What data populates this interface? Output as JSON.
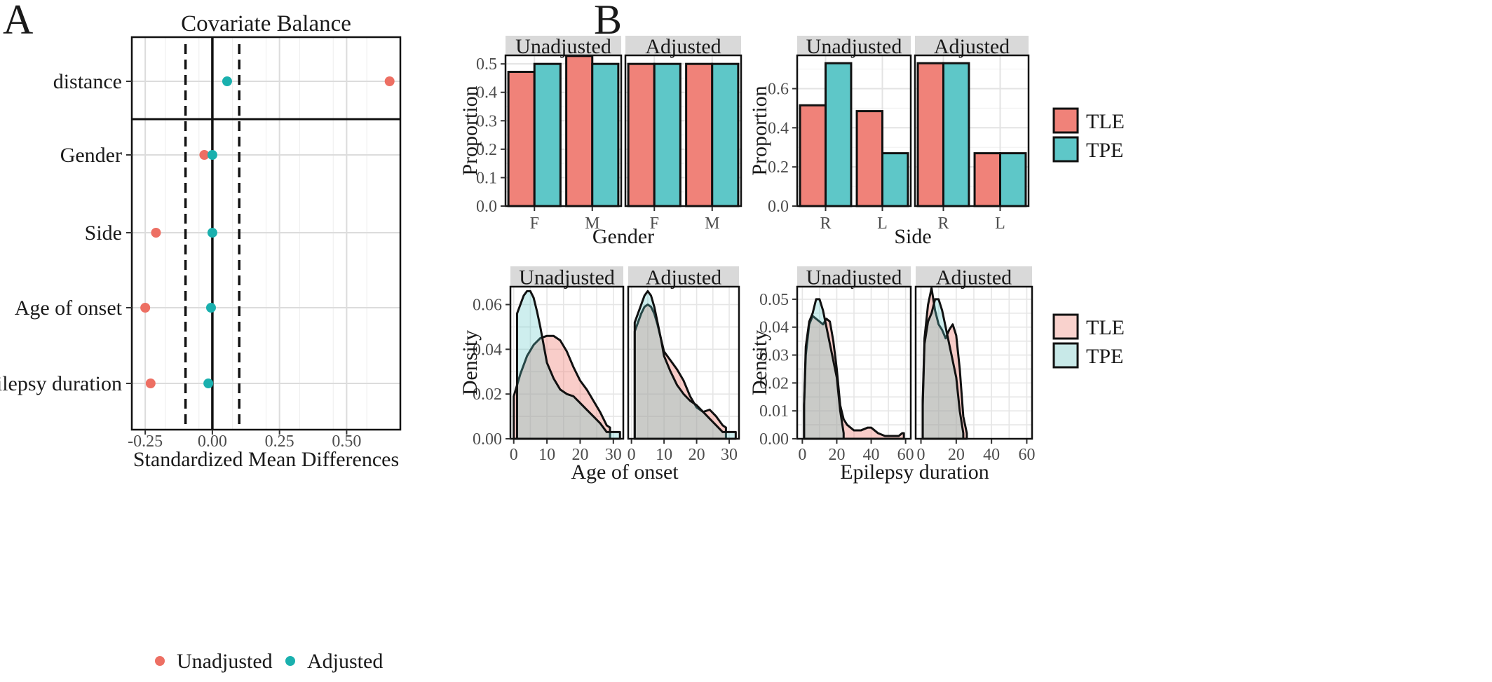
{
  "panel_labels": [
    "A",
    "B"
  ],
  "colors": {
    "tle": "#f08279",
    "tpe": "#5ec7c8",
    "unadjusted_pt": "#ed6f63",
    "adjusted_pt": "#1ab0ae",
    "strip": "#d9d9d9"
  },
  "chart_data": [
    {
      "id": "love-plot",
      "type": "scatter",
      "title": "Covariate Balance",
      "xlabel": "Standardized Mean Differences",
      "ylabel": "",
      "xlim": [
        -0.3,
        0.7
      ],
      "xticks": [
        -0.25,
        0.0,
        0.25,
        0.5
      ],
      "xtick_labels": [
        "-0.25",
        "0.00",
        "0.25",
        "0.50"
      ],
      "thresholds": [
        -0.1,
        0.1
      ],
      "categories": [
        "distance",
        "Gender",
        "Side",
        "Age of onset",
        "Epilepsy duration"
      ],
      "series": [
        {
          "name": "Unadjusted",
          "values": [
            0.66,
            -0.03,
            -0.21,
            -0.25,
            -0.23
          ]
        },
        {
          "name": "Adjusted",
          "values": [
            0.055,
            0.0,
            0.0,
            -0.005,
            -0.015
          ]
        }
      ],
      "legend": "bottom"
    },
    {
      "id": "gender-bars",
      "type": "bar",
      "xlabel": "Gender",
      "ylabel": "Proportion",
      "ylim": [
        0,
        0.53
      ],
      "yticks": [
        0,
        0.1,
        0.2,
        0.3,
        0.4,
        0.5
      ],
      "ytick_labels": [
        "0.0",
        "0.1",
        "0.2",
        "0.3",
        "0.4",
        "0.5"
      ],
      "categories": [
        "F",
        "M"
      ],
      "facets": [
        {
          "label": "Unadjusted",
          "series": [
            {
              "name": "TLE",
              "values": [
                0.472,
                0.528
              ]
            },
            {
              "name": "TPE",
              "values": [
                0.5,
                0.5
              ]
            }
          ]
        },
        {
          "label": "Adjusted",
          "series": [
            {
              "name": "TLE",
              "values": [
                0.5,
                0.5
              ]
            },
            {
              "name": "TPE",
              "values": [
                0.5,
                0.5
              ]
            }
          ]
        }
      ]
    },
    {
      "id": "side-bars",
      "type": "bar",
      "xlabel": "Side",
      "ylabel": "Proportion",
      "ylim": [
        0,
        0.77
      ],
      "yticks": [
        0,
        0.2,
        0.4,
        0.6
      ],
      "ytick_labels": [
        "0.0",
        "0.2",
        "0.4",
        "0.6"
      ],
      "categories": [
        "R",
        "L"
      ],
      "facets": [
        {
          "label": "Unadjusted",
          "series": [
            {
              "name": "TLE",
              "values": [
                0.515,
                0.485
              ]
            },
            {
              "name": "TPE",
              "values": [
                0.73,
                0.27
              ]
            }
          ]
        },
        {
          "label": "Adjusted",
          "series": [
            {
              "name": "TLE",
              "values": [
                0.73,
                0.27
              ]
            },
            {
              "name": "TPE",
              "values": [
                0.73,
                0.27
              ]
            }
          ]
        }
      ],
      "legend": {
        "position": "right",
        "items": [
          "TLE",
          "TPE"
        ]
      }
    },
    {
      "id": "age-density",
      "type": "area",
      "xlabel": "Age of onset",
      "ylabel": "Density",
      "xlim": [
        -1,
        33
      ],
      "ylim": [
        0,
        0.068
      ],
      "xticks": [
        0,
        10,
        20,
        30
      ],
      "xtick_labels": [
        "0",
        "10",
        "20",
        "30"
      ],
      "yticks": [
        0,
        0.02,
        0.04,
        0.06
      ],
      "ytick_labels": [
        "0.00",
        "0.02",
        "0.04",
        "0.06"
      ],
      "facets": [
        {
          "label": "Unadjusted",
          "series": [
            {
              "name": "TLE",
              "x": [
                0,
                1,
                2,
                3,
                4,
                6,
                8,
                10,
                12,
                14,
                16,
                18,
                20,
                22,
                24,
                26,
                28,
                29
              ],
              "values": [
                0.019,
                0.024,
                0.029,
                0.033,
                0.037,
                0.042,
                0.045,
                0.046,
                0.046,
                0.044,
                0.039,
                0.032,
                0.026,
                0.022,
                0.017,
                0.012,
                0.006,
                0.005
              ]
            },
            {
              "name": "TPE",
              "x": [
                1,
                2,
                3,
                4,
                5,
                6,
                7,
                8,
                9,
                10,
                12,
                14,
                16,
                18,
                20,
                22,
                24,
                26,
                28,
                30,
                32
              ],
              "values": [
                0.056,
                0.06,
                0.064,
                0.066,
                0.066,
                0.063,
                0.057,
                0.05,
                0.042,
                0.034,
                0.027,
                0.022,
                0.02,
                0.019,
                0.016,
                0.013,
                0.01,
                0.007,
                0.003,
                0.003,
                0.003
              ]
            }
          ]
        },
        {
          "label": "Adjusted",
          "series": [
            {
              "name": "TLE",
              "x": [
                1,
                2,
                3,
                4,
                5,
                6,
                7,
                8,
                9,
                10,
                12,
                14,
                16,
                18,
                20,
                22,
                24,
                26,
                28,
                29
              ],
              "values": [
                0.048,
                0.052,
                0.056,
                0.059,
                0.06,
                0.059,
                0.056,
                0.051,
                0.045,
                0.039,
                0.035,
                0.031,
                0.026,
                0.019,
                0.014,
                0.012,
                0.013,
                0.01,
                0.006,
                0.005
              ]
            },
            {
              "name": "TPE",
              "x": [
                1,
                2,
                3,
                4,
                5,
                6,
                7,
                8,
                9,
                10,
                12,
                14,
                16,
                18,
                20,
                22,
                24,
                26,
                28,
                30,
                32
              ],
              "values": [
                0.052,
                0.056,
                0.06,
                0.064,
                0.066,
                0.064,
                0.059,
                0.052,
                0.045,
                0.037,
                0.03,
                0.024,
                0.02,
                0.017,
                0.015,
                0.012,
                0.009,
                0.006,
                0.003,
                0.003,
                0.003
              ]
            }
          ]
        }
      ],
      "legend": {
        "position": "right",
        "items": [
          "TLE",
          "TPE"
        ]
      }
    },
    {
      "id": "duration-density",
      "type": "area",
      "xlabel": "Epilepsy duration",
      "ylabel": "Density",
      "xlim": [
        -3,
        63
      ],
      "ylim": [
        0,
        0.0545
      ],
      "xticks": [
        0,
        20,
        40,
        60
      ],
      "xtick_labels": [
        "0",
        "20",
        "40",
        "60"
      ],
      "yticks": [
        0,
        0.01,
        0.02,
        0.03,
        0.04,
        0.05
      ],
      "ytick_labels": [
        "0.00",
        "0.01",
        "0.02",
        "0.03",
        "0.04",
        "0.05"
      ],
      "facets": [
        {
          "label": "Unadjusted",
          "series": [
            {
              "name": "TLE",
              "x": [
                1,
                2,
                4,
                6,
                8,
                10,
                12,
                14,
                16,
                18,
                20,
                22,
                24,
                26,
                28,
                30,
                34,
                38,
                40,
                44,
                48,
                52,
                56,
                58,
                59
              ],
              "values": [
                0.012,
                0.03,
                0.041,
                0.044,
                0.043,
                0.042,
                0.041,
                0.043,
                0.042,
                0.035,
                0.025,
                0.012,
                0.007,
                0.005,
                0.004,
                0.003,
                0.003,
                0.004,
                0.004,
                0.002,
                0.001,
                0.001,
                0.001,
                0.002,
                0.002
              ]
            },
            {
              "name": "TPE",
              "x": [
                1,
                2,
                4,
                6,
                8,
                10,
                12,
                14,
                16,
                18,
                20,
                22,
                24
              ],
              "values": [
                0.012,
                0.033,
                0.042,
                0.045,
                0.05,
                0.05,
                0.046,
                0.04,
                0.034,
                0.028,
                0.022,
                0.01,
                0.002
              ]
            }
          ]
        },
        {
          "label": "Adjusted",
          "series": [
            {
              "name": "TLE",
              "x": [
                1,
                2,
                4,
                6,
                8,
                10,
                12,
                14,
                16,
                18,
                20,
                22,
                24,
                26
              ],
              "values": [
                0.014,
                0.036,
                0.048,
                0.054,
                0.046,
                0.041,
                0.039,
                0.036,
                0.039,
                0.041,
                0.037,
                0.025,
                0.008,
                0.002
              ]
            },
            {
              "name": "TPE",
              "x": [
                1,
                2,
                4,
                6,
                8,
                10,
                12,
                14,
                16,
                18,
                20,
                22,
                24
              ],
              "values": [
                0.012,
                0.034,
                0.042,
                0.045,
                0.05,
                0.05,
                0.046,
                0.04,
                0.034,
                0.028,
                0.022,
                0.01,
                0.002
              ]
            }
          ]
        }
      ]
    }
  ]
}
